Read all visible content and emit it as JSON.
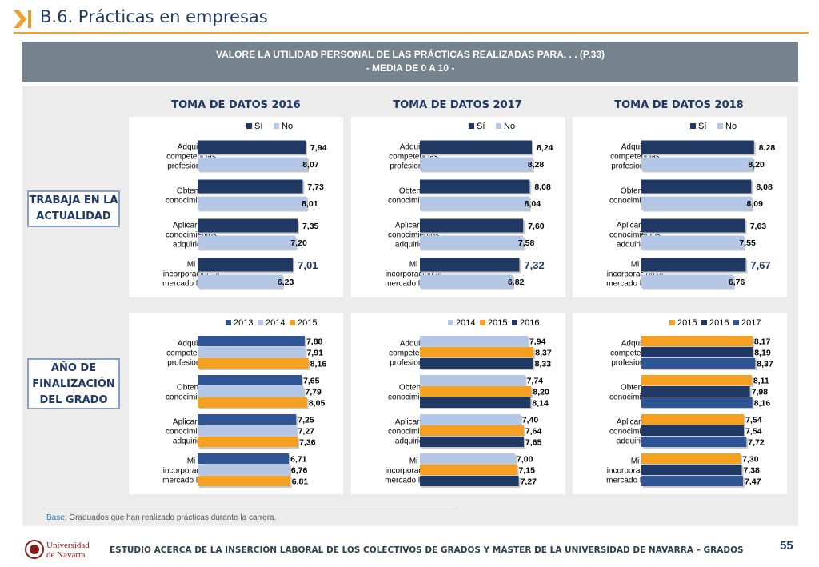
{
  "header": {
    "title": "B.6. Prácticas en empresas"
  },
  "banner": {
    "line1": "VALORE LA UTILIDAD PERSONAL DE LAS PRÁCTICAS REALIZADAS PARA. . . (P.33)",
    "line2": "- MEDIA DE 0 A 10 -"
  },
  "columns": [
    "TOMA DE DATOS 2016",
    "TOMA DE DATOS 2017",
    "TOMA DE DATOS 2018"
  ],
  "row_labels": {
    "trabaja": [
      "TRABAJA EN LA",
      "ACTUALIDAD"
    ],
    "finalizacion": [
      "AÑO DE",
      "FINALIZACIÓN",
      "DEL GRADO"
    ]
  },
  "colors": {
    "dark": "#203864",
    "light": "#b4c7e7",
    "orange": "#f5a020",
    "mid": "#2f5597",
    "accent": "#f0a030"
  },
  "chart_data": [
    {
      "type": "bar",
      "categories": [
        "Adquirir competencias profesionales",
        "Obtener conocimientos",
        "Aplicar los conocimientos adquiridos",
        "Mi incorporación al mercado laboral"
      ],
      "series": [
        {
          "name": "Sí",
          "color": "#203864",
          "values": [
            7.94,
            7.73,
            7.35,
            7.01
          ],
          "labels": [
            "7,94",
            "7,73",
            "7,35",
            "7,01"
          ]
        },
        {
          "name": "No",
          "color": "#b4c7e7",
          "values": [
            8.07,
            8.01,
            7.2,
            6.23
          ],
          "labels": [
            "8,07",
            "8,01",
            "7,20",
            "6,23"
          ]
        }
      ],
      "xlim": [
        0,
        10
      ]
    },
    {
      "type": "bar",
      "categories": [
        "Adquirir competencias profesionales",
        "Obtener conocimientos",
        "Aplicar los conocimientos adquiridos",
        "Mi incorporación al mercado laboral"
      ],
      "series": [
        {
          "name": "Sí",
          "color": "#203864",
          "values": [
            8.24,
            8.08,
            7.6,
            7.32
          ],
          "labels": [
            "8,24",
            "8,08",
            "7,60",
            "7,32"
          ]
        },
        {
          "name": "No",
          "color": "#b4c7e7",
          "values": [
            8.28,
            8.04,
            7.58,
            6.82
          ],
          "labels": [
            "8,28",
            "8,04",
            "7,58",
            "6,82"
          ]
        }
      ],
      "xlim": [
        0,
        10
      ]
    },
    {
      "type": "bar",
      "categories": [
        "Adquirir competencias profesionales",
        "Obtener conocimientos",
        "Aplicar los conocimientos adquiridos",
        "Mi incorporación al mercado laboral"
      ],
      "series": [
        {
          "name": "Sí",
          "color": "#203864",
          "values": [
            8.28,
            8.08,
            7.63,
            7.67
          ],
          "labels": [
            "8,28",
            "8,08",
            "7,63",
            "7,67"
          ]
        },
        {
          "name": "No",
          "color": "#b4c7e7",
          "values": [
            8.2,
            8.09,
            7.55,
            6.76
          ],
          "labels": [
            "8,20",
            "8,09",
            "7,55",
            "6,76"
          ]
        }
      ],
      "xlim": [
        0,
        10
      ]
    },
    {
      "type": "bar",
      "categories": [
        "Adquirir competencias profesionales",
        "Obtener conocimientos",
        "Aplicar los conocimientos adquiridos",
        "Mi incorporación al mercado laboral"
      ],
      "series": [
        {
          "name": "2013",
          "color": "#2f5597",
          "values": [
            7.88,
            7.65,
            7.25,
            6.71
          ],
          "labels": [
            "7,88",
            "7,65",
            "7,25",
            "6,71"
          ]
        },
        {
          "name": "2014",
          "color": "#b4c7e7",
          "values": [
            7.91,
            7.79,
            7.27,
            6.76
          ],
          "labels": [
            "7,91",
            "7,79",
            "7,27",
            "6,76"
          ]
        },
        {
          "name": "2015",
          "color": "#f5a020",
          "values": [
            8.16,
            8.05,
            7.36,
            6.81
          ],
          "labels": [
            "8,16",
            "8,05",
            "7,36",
            "6,81"
          ]
        }
      ],
      "xlim": [
        0,
        10
      ]
    },
    {
      "type": "bar",
      "categories": [
        "Adquirir competencias profesionales",
        "Obtener conocimientos",
        "Aplicar los conocimientos adquiridos",
        "Mi incorporación al mercado laboral"
      ],
      "series": [
        {
          "name": "2014",
          "color": "#b4c7e7",
          "values": [
            7.94,
            7.74,
            7.4,
            7.0
          ],
          "labels": [
            "7,94",
            "7,74",
            "7,40",
            "7,00"
          ]
        },
        {
          "name": "2015",
          "color": "#f5a020",
          "values": [
            8.37,
            8.2,
            7.64,
            7.15
          ],
          "labels": [
            "8,37",
            "8,20",
            "7,64",
            "7,15"
          ]
        },
        {
          "name": "2016",
          "color": "#203864",
          "values": [
            8.33,
            8.14,
            7.65,
            7.27
          ],
          "labels": [
            "8,33",
            "8,14",
            "7,65",
            "7,27"
          ]
        }
      ],
      "xlim": [
        0,
        10
      ]
    },
    {
      "type": "bar",
      "categories": [
        "Adquirir competencias profesionales",
        "Obtener conocimientos",
        "Aplicar los conocimientos adquiridos",
        "Mi incorporación al mercado laboral"
      ],
      "series": [
        {
          "name": "2015",
          "color": "#f5a020",
          "values": [
            8.17,
            8.11,
            7.54,
            7.3
          ],
          "labels": [
            "8,17",
            "8,11",
            "7,54",
            "7,30"
          ]
        },
        {
          "name": "2016",
          "color": "#203864",
          "values": [
            8.19,
            7.98,
            7.54,
            7.38
          ],
          "labels": [
            "8,19",
            "7,98",
            "7,54",
            "7,38"
          ]
        },
        {
          "name": "2017",
          "color": "#2f5597",
          "values": [
            8.37,
            8.16,
            7.72,
            7.47
          ],
          "labels": [
            "8,37",
            "8,16",
            "7,72",
            "7,47"
          ]
        }
      ],
      "xlim": [
        0,
        10
      ]
    }
  ],
  "base": {
    "label": "Base",
    "text": ": Graduados que han realizado prácticas durante la carrera."
  },
  "footer": {
    "logo_line1": "Universidad",
    "logo_line2": "de Navarra",
    "text": "ESTUDIO ACERCA DE LA INSERCIÓN LABORAL DE LOS COLECTIVOS DE GRADOS Y MÁSTER DE LA UNIVERSIDAD DE NAVARRA – GRADOS",
    "page": "55"
  }
}
